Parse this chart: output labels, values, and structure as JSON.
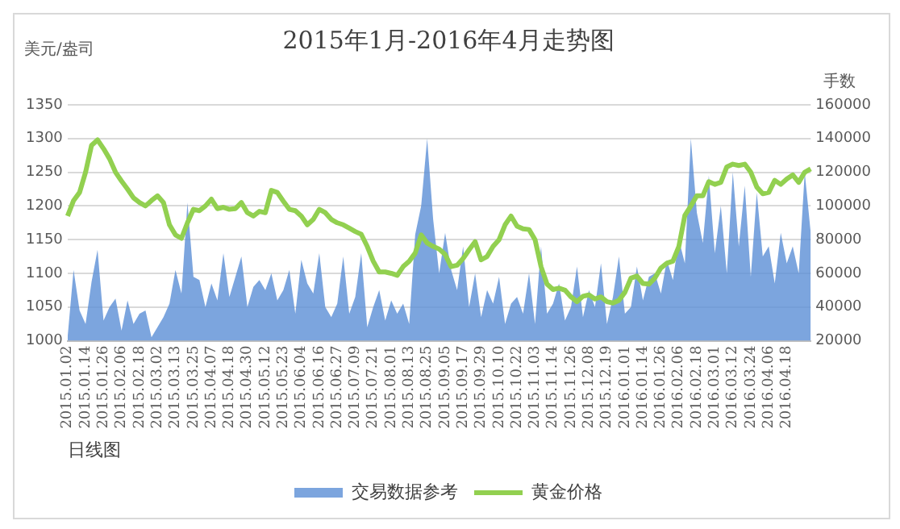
{
  "chart_data": {
    "type": "line",
    "title": "2015年1月-2016年4月走势图",
    "xlabel": "日线图",
    "ylabel": "美元/盎司",
    "y2label": "手数",
    "categories": [
      "2015.01.02",
      null,
      null,
      "2015.01.14",
      null,
      null,
      "2015.01.26",
      null,
      null,
      "2015.02.06",
      null,
      null,
      "2015.02.18",
      null,
      null,
      "2015.03.02",
      null,
      null,
      "2015.03.13",
      null,
      null,
      "2015.03.25",
      null,
      null,
      "2015.04.07",
      null,
      null,
      "2015.04.18",
      null,
      null,
      "2015.04.30",
      null,
      null,
      "2015.05.12",
      null,
      null,
      "2015.05.23",
      null,
      null,
      "2015.06.04",
      null,
      null,
      "2015.06.16",
      null,
      null,
      "2015.06.27",
      null,
      null,
      "2015.07.09",
      null,
      null,
      "2015.07.21",
      null,
      null,
      "2015.08.01",
      null,
      null,
      "2015.08.13",
      null,
      null,
      "2015.08.25",
      null,
      null,
      "2015.09.05",
      null,
      null,
      "2015.09.17",
      null,
      null,
      "2015.09.29",
      null,
      null,
      "2015.10.10",
      null,
      null,
      "2015.10.22",
      null,
      null,
      "2015.11.03",
      null,
      null,
      "2015.11.14",
      null,
      null,
      "2015.11.26",
      null,
      null,
      "2015.12.08",
      null,
      null,
      "2015.12.19",
      null,
      null,
      "2016.01.01",
      null,
      null,
      "2016.01.14",
      null,
      null,
      "2016.01.26",
      null,
      null,
      "2016.02.06",
      null,
      null,
      "2016.02.18",
      null,
      null,
      "2016.03.01",
      null,
      null,
      "2016.03.12",
      null,
      null,
      "2016.03.24",
      null,
      null,
      "2016.04.06",
      null,
      null,
      "2016.04.18",
      null,
      null,
      null,
      null
    ],
    "series": [
      {
        "name": "交易数据参考",
        "type": "area",
        "axis": "y2",
        "color": "#5b8fd6",
        "values": [
          22000,
          62000,
          38000,
          30000,
          55000,
          74000,
          32000,
          40000,
          45000,
          26000,
          44000,
          30000,
          36000,
          38000,
          22000,
          28000,
          34000,
          42000,
          62000,
          48000,
          102000,
          58000,
          56000,
          40000,
          54000,
          44000,
          72000,
          46000,
          58000,
          70000,
          40000,
          52000,
          56000,
          50000,
          60000,
          44000,
          50000,
          62000,
          36000,
          68000,
          54000,
          48000,
          72000,
          40000,
          34000,
          42000,
          70000,
          36000,
          46000,
          72000,
          28000,
          40000,
          50000,
          32000,
          44000,
          36000,
          42000,
          30000,
          83000,
          100000,
          140000,
          92000,
          60000,
          84000,
          62000,
          50000,
          76000,
          40000,
          60000,
          34000,
          50000,
          42000,
          58000,
          30000,
          42000,
          46000,
          36000,
          60000,
          30000,
          76000,
          36000,
          42000,
          54000,
          32000,
          40000,
          64000,
          34000,
          50000,
          40000,
          66000,
          30000,
          46000,
          70000,
          36000,
          40000,
          64000,
          44000,
          58000,
          60000,
          48000,
          68000,
          56000,
          80000,
          66000,
          140000,
          96000,
          78000,
          118000,
          72000,
          100000,
          60000,
          120000,
          76000,
          112000,
          58000,
          108000,
          70000,
          76000,
          54000,
          84000,
          66000,
          76000,
          60000,
          120000,
          84000
        ]
      },
      {
        "name": "黄金价格",
        "color": "#92d050",
        "values": [
          1185,
          1208,
          1220,
          1250,
          1290,
          1298,
          1285,
          1270,
          1250,
          1237,
          1225,
          1212,
          1205,
          1200,
          1208,
          1215,
          1205,
          1172,
          1157,
          1152,
          1175,
          1195,
          1193,
          1200,
          1210,
          1196,
          1198,
          1195,
          1196,
          1205,
          1190,
          1185,
          1192,
          1190,
          1223,
          1220,
          1207,
          1195,
          1193,
          1185,
          1172,
          1180,
          1195,
          1190,
          1180,
          1175,
          1172,
          1167,
          1162,
          1158,
          1140,
          1118,
          1102,
          1102,
          1100,
          1097,
          1110,
          1118,
          1130,
          1157,
          1145,
          1140,
          1136,
          1128,
          1110,
          1112,
          1122,
          1135,
          1147,
          1120,
          1125,
          1140,
          1150,
          1172,
          1185,
          1170,
          1166,
          1165,
          1150,
          1110,
          1084,
          1076,
          1078,
          1075,
          1065,
          1058,
          1066,
          1068,
          1062,
          1065,
          1058,
          1056,
          1060,
          1072,
          1093,
          1096,
          1085,
          1084,
          1093,
          1108,
          1115,
          1118,
          1140,
          1186,
          1200,
          1215,
          1215,
          1236,
          1232,
          1235,
          1258,
          1262,
          1260,
          1262,
          1250,
          1228,
          1218,
          1220,
          1238,
          1232,
          1240,
          1246,
          1235,
          1250,
          1255
        ]
      }
    ],
    "ylim": [
      1000,
      1350
    ],
    "yticks": [
      1000,
      1050,
      1100,
      1150,
      1200,
      1250,
      1300,
      1350
    ],
    "y2lim": [
      20000,
      160000
    ],
    "y2ticks": [
      20000,
      40000,
      60000,
      80000,
      100000,
      120000,
      140000,
      160000
    ],
    "grid": "y",
    "legend": "bottom"
  }
}
